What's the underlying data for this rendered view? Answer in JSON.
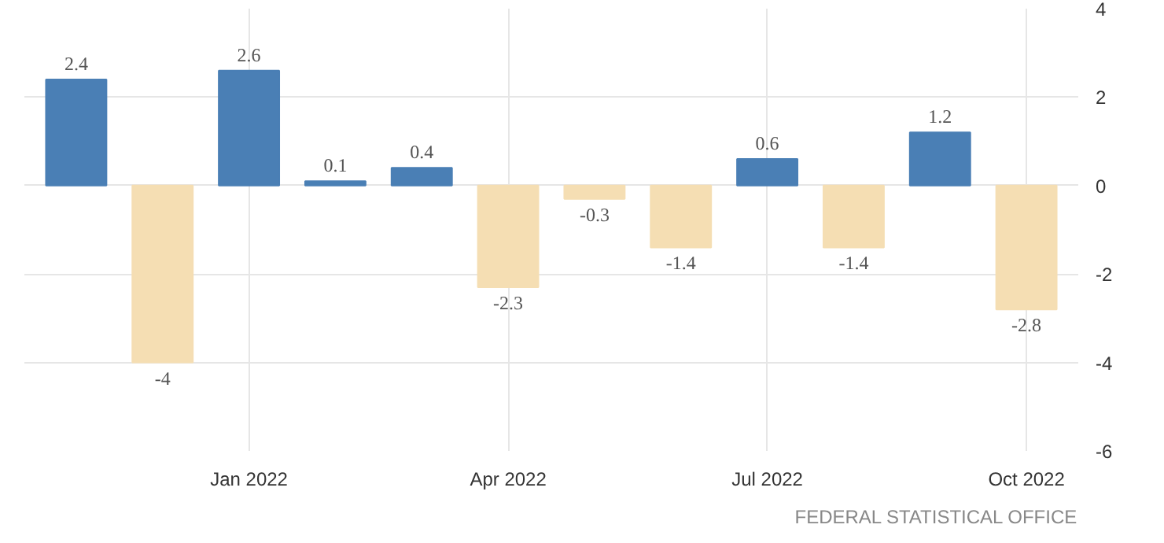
{
  "chart_data": {
    "type": "bar",
    "categories": [
      null,
      null,
      "Jan 2022",
      null,
      null,
      "Apr 2022",
      null,
      null,
      "Jul 2022",
      null,
      null,
      "Oct 2022"
    ],
    "values": [
      2.4,
      -4,
      2.6,
      0.1,
      0.4,
      -2.3,
      -0.3,
      -1.4,
      0.6,
      -1.4,
      1.2,
      -2.8
    ],
    "colors": [
      "#4a7fb5",
      "#f5deb3",
      "#4a7fb5",
      "#4a7fb5",
      "#4a7fb5",
      "#f5deb3",
      "#f5deb3",
      "#f5deb3",
      "#4a7fb5",
      "#f5deb3",
      "#4a7fb5",
      "#f5deb3"
    ],
    "ylim": [
      -6,
      4
    ],
    "yticks": [
      -6,
      -4,
      -2,
      0,
      2,
      4
    ],
    "grid": true,
    "data_labels": true,
    "annotations": [
      "FEDERAL STATISTICAL OFFICE"
    ]
  }
}
